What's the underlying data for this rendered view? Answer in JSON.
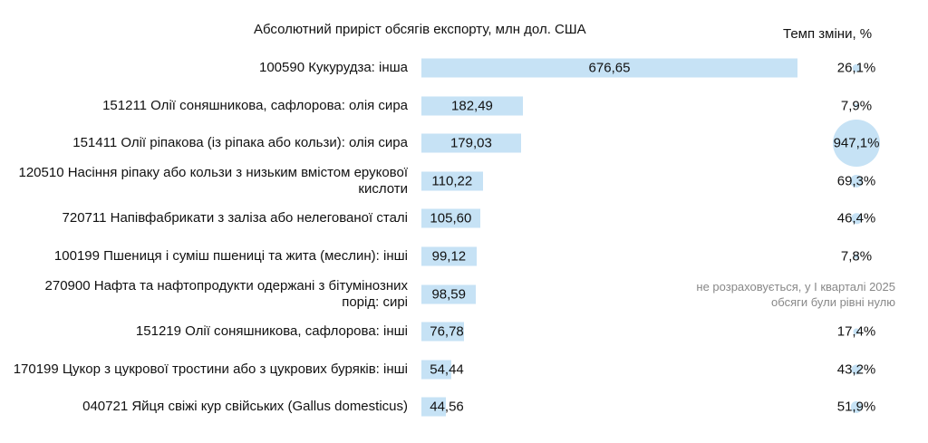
{
  "chart_data": {
    "type": "bar",
    "orientation": "horizontal",
    "categories": [
      "100590 Кукурудза: інша",
      "151211 Олії соняшникова, сафлорова: олія сира",
      "151411 Олії ріпакова (із ріпака або кользи): олія сира",
      "120510 Насіння ріпаку або кользи з низьким вмістом ерукової кислоти",
      "720711 Напівфабрикати з заліза або нелегованої сталі",
      "100199 Пшениця і суміш пшениці та жита (меслин): інші",
      "270900 Нафта та нафтопродукти одержані з бітумінозних порід: сирі",
      "151219 Олії соняшникова, сафлорова: інші",
      "170199 Цукор з цукрової тростини або з цукрових буряків: інші",
      "040721 Яйця свіжі кур свійських (Gallus domesticus)"
    ],
    "series": [
      {
        "name": "Абсолютний приріст обсягів експорту, млн дол. США",
        "color": "#c6e2f5",
        "values": [
          676.65,
          182.49,
          179.03,
          110.22,
          105.6,
          99.12,
          98.59,
          76.78,
          54.44,
          44.56
        ],
        "value_labels": [
          "676,65",
          "182,49",
          "179,03",
          "110,22",
          "105,60",
          "99,12",
          "98,59",
          "76,78",
          "54,44",
          "44,56"
        ]
      },
      {
        "name": "Темп зміни, %",
        "color": "#c6e2f5",
        "values": [
          26.1,
          7.9,
          947.1,
          69.3,
          46.4,
          7.8,
          null,
          17.4,
          43.2,
          51.9
        ],
        "value_labels": [
          "26,1%",
          "7,9%",
          "947,1%",
          "69,3%",
          "46,4%",
          "7,8%",
          "не розраховується, у І кварталі 2025 обсяги були рівні нулю",
          "17,4%",
          "43,2%",
          "51,9%"
        ]
      }
    ]
  }
}
